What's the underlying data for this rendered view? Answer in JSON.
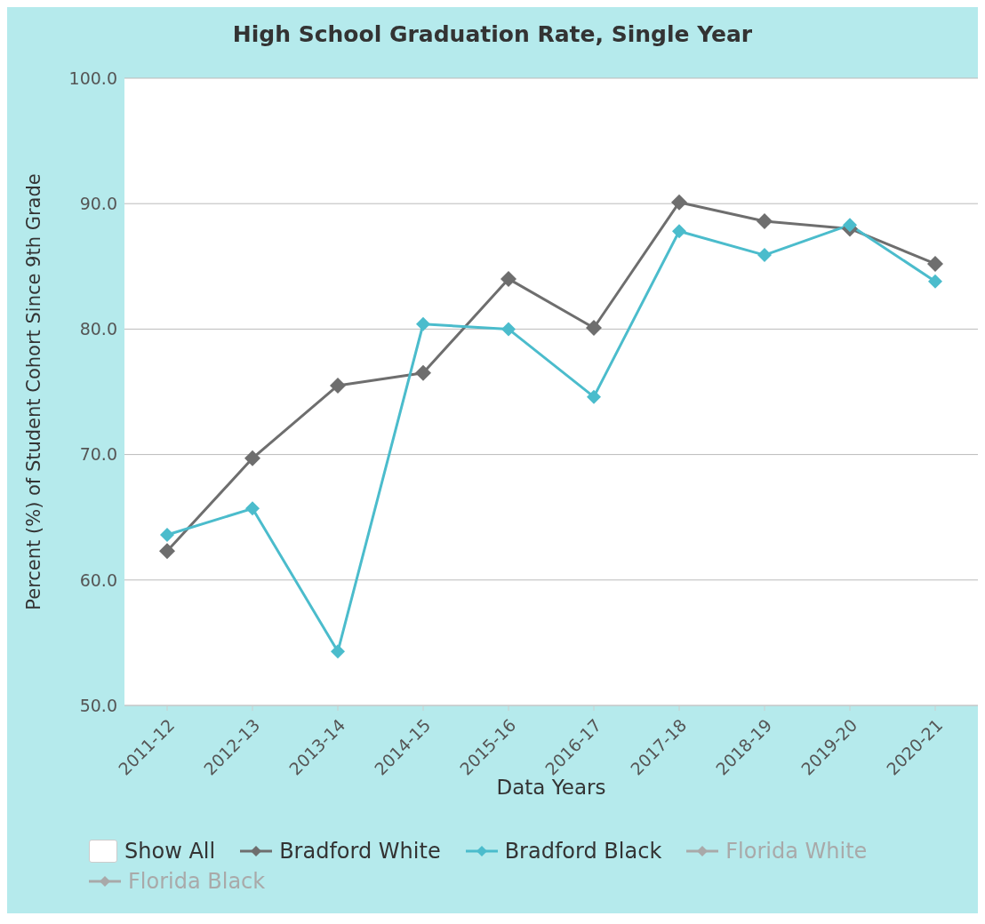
{
  "chart_data": {
    "type": "line",
    "title": "High School Graduation Rate, Single Year",
    "xlabel": "Data Years",
    "ylabel": "Percent (%) of Student Cohort Since 9th Grade",
    "categories": [
      "2011-12",
      "2012-13",
      "2013-14",
      "2014-15",
      "2015-16",
      "2016-17",
      "2017-18",
      "2018-19",
      "2019-20",
      "2020-21"
    ],
    "series": [
      {
        "name": "Bradford White",
        "color": "#6e6e6e",
        "values": [
          62.3,
          69.7,
          75.5,
          76.5,
          84.0,
          80.1,
          90.1,
          88.6,
          88.0,
          85.2
        ]
      },
      {
        "name": "Bradford Black",
        "color": "#4bbccc",
        "values": [
          63.6,
          65.7,
          54.3,
          80.4,
          80.0,
          74.6,
          87.8,
          85.9,
          88.3,
          83.8
        ]
      },
      {
        "name": "Florida White",
        "color": "#a9a9a9",
        "values": [
          null,
          null,
          null,
          null,
          null,
          null,
          null,
          null,
          null,
          null
        ]
      },
      {
        "name": "Florida Black",
        "color": "#a9a9a9",
        "values": [
          null,
          null,
          null,
          null,
          null,
          null,
          null,
          null,
          null,
          null
        ]
      }
    ],
    "ylim": [
      50,
      100
    ],
    "yticks": [
      {
        "value": 50,
        "label": "50.0"
      },
      {
        "value": 60,
        "label": "60.0"
      },
      {
        "value": 70,
        "label": "70.0"
      },
      {
        "value": 80,
        "label": "80.0"
      },
      {
        "value": 90,
        "label": "90.0"
      },
      {
        "value": 100,
        "label": "100.0"
      }
    ],
    "grid": "y",
    "legend": "bottom",
    "marker": "diamond",
    "line_style": "solid",
    "annotations": [
      "Show All"
    ]
  }
}
